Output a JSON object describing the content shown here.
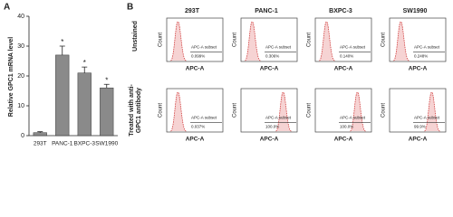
{
  "panel_labels": [
    "A",
    "B"
  ],
  "chart_data": {
    "type": "bar",
    "y_label": "Relative GPC1 mRNA level",
    "categories": [
      "293T",
      "PANC-1",
      "BXPC-3",
      "SW1990"
    ],
    "values": [
      1,
      27,
      21,
      16
    ],
    "errors": [
      0.3,
      3,
      2,
      1.2
    ],
    "significance": [
      null,
      "*",
      "*",
      "*"
    ],
    "color": "#8a8a8a",
    "ylim": [
      0,
      40
    ],
    "yticks": [
      0,
      10,
      20,
      30,
      40
    ]
  },
  "panel_b": {
    "columns": [
      "293T",
      "PANC-1",
      "BXPC-3",
      "SW1990"
    ],
    "x_label": "APC-A",
    "y_label": "Count",
    "gate_label": "APC-A subset",
    "rows": [
      {
        "label": "Unstained",
        "gates": [
          "0.099%",
          "0.306%",
          "0.140%",
          "0.248%"
        ]
      },
      {
        "label": "Treated with anti-GPC1 antibody",
        "gates": [
          "0.037%",
          "100.0%",
          "100.0%",
          "99.9%"
        ]
      }
    ]
  }
}
